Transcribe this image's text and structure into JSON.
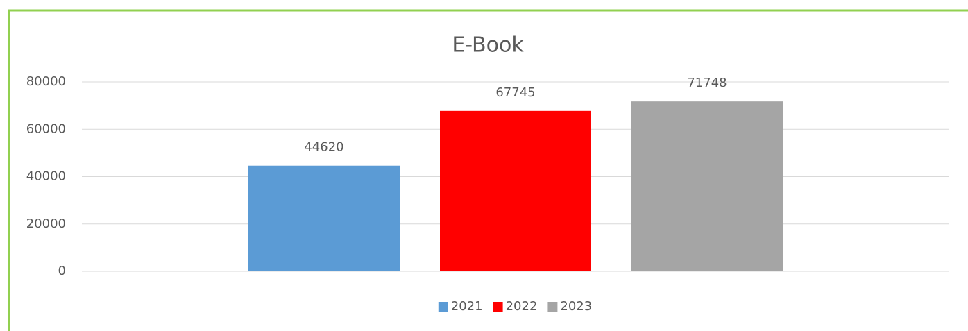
{
  "chart_data": {
    "type": "bar",
    "title": "E-Book",
    "categories": [
      null
    ],
    "series": [
      {
        "name": "2021",
        "color": "#5b9bd5",
        "values": [
          44620
        ]
      },
      {
        "name": "2022",
        "color": "#ff0000",
        "values": [
          67745
        ]
      },
      {
        "name": "2023",
        "color": "#a5a5a5",
        "values": [
          71748
        ]
      }
    ],
    "ylim": [
      0,
      80000
    ],
    "yticks": [
      0,
      20000,
      40000,
      60000,
      80000
    ],
    "grid": true,
    "legend": "bottom"
  }
}
